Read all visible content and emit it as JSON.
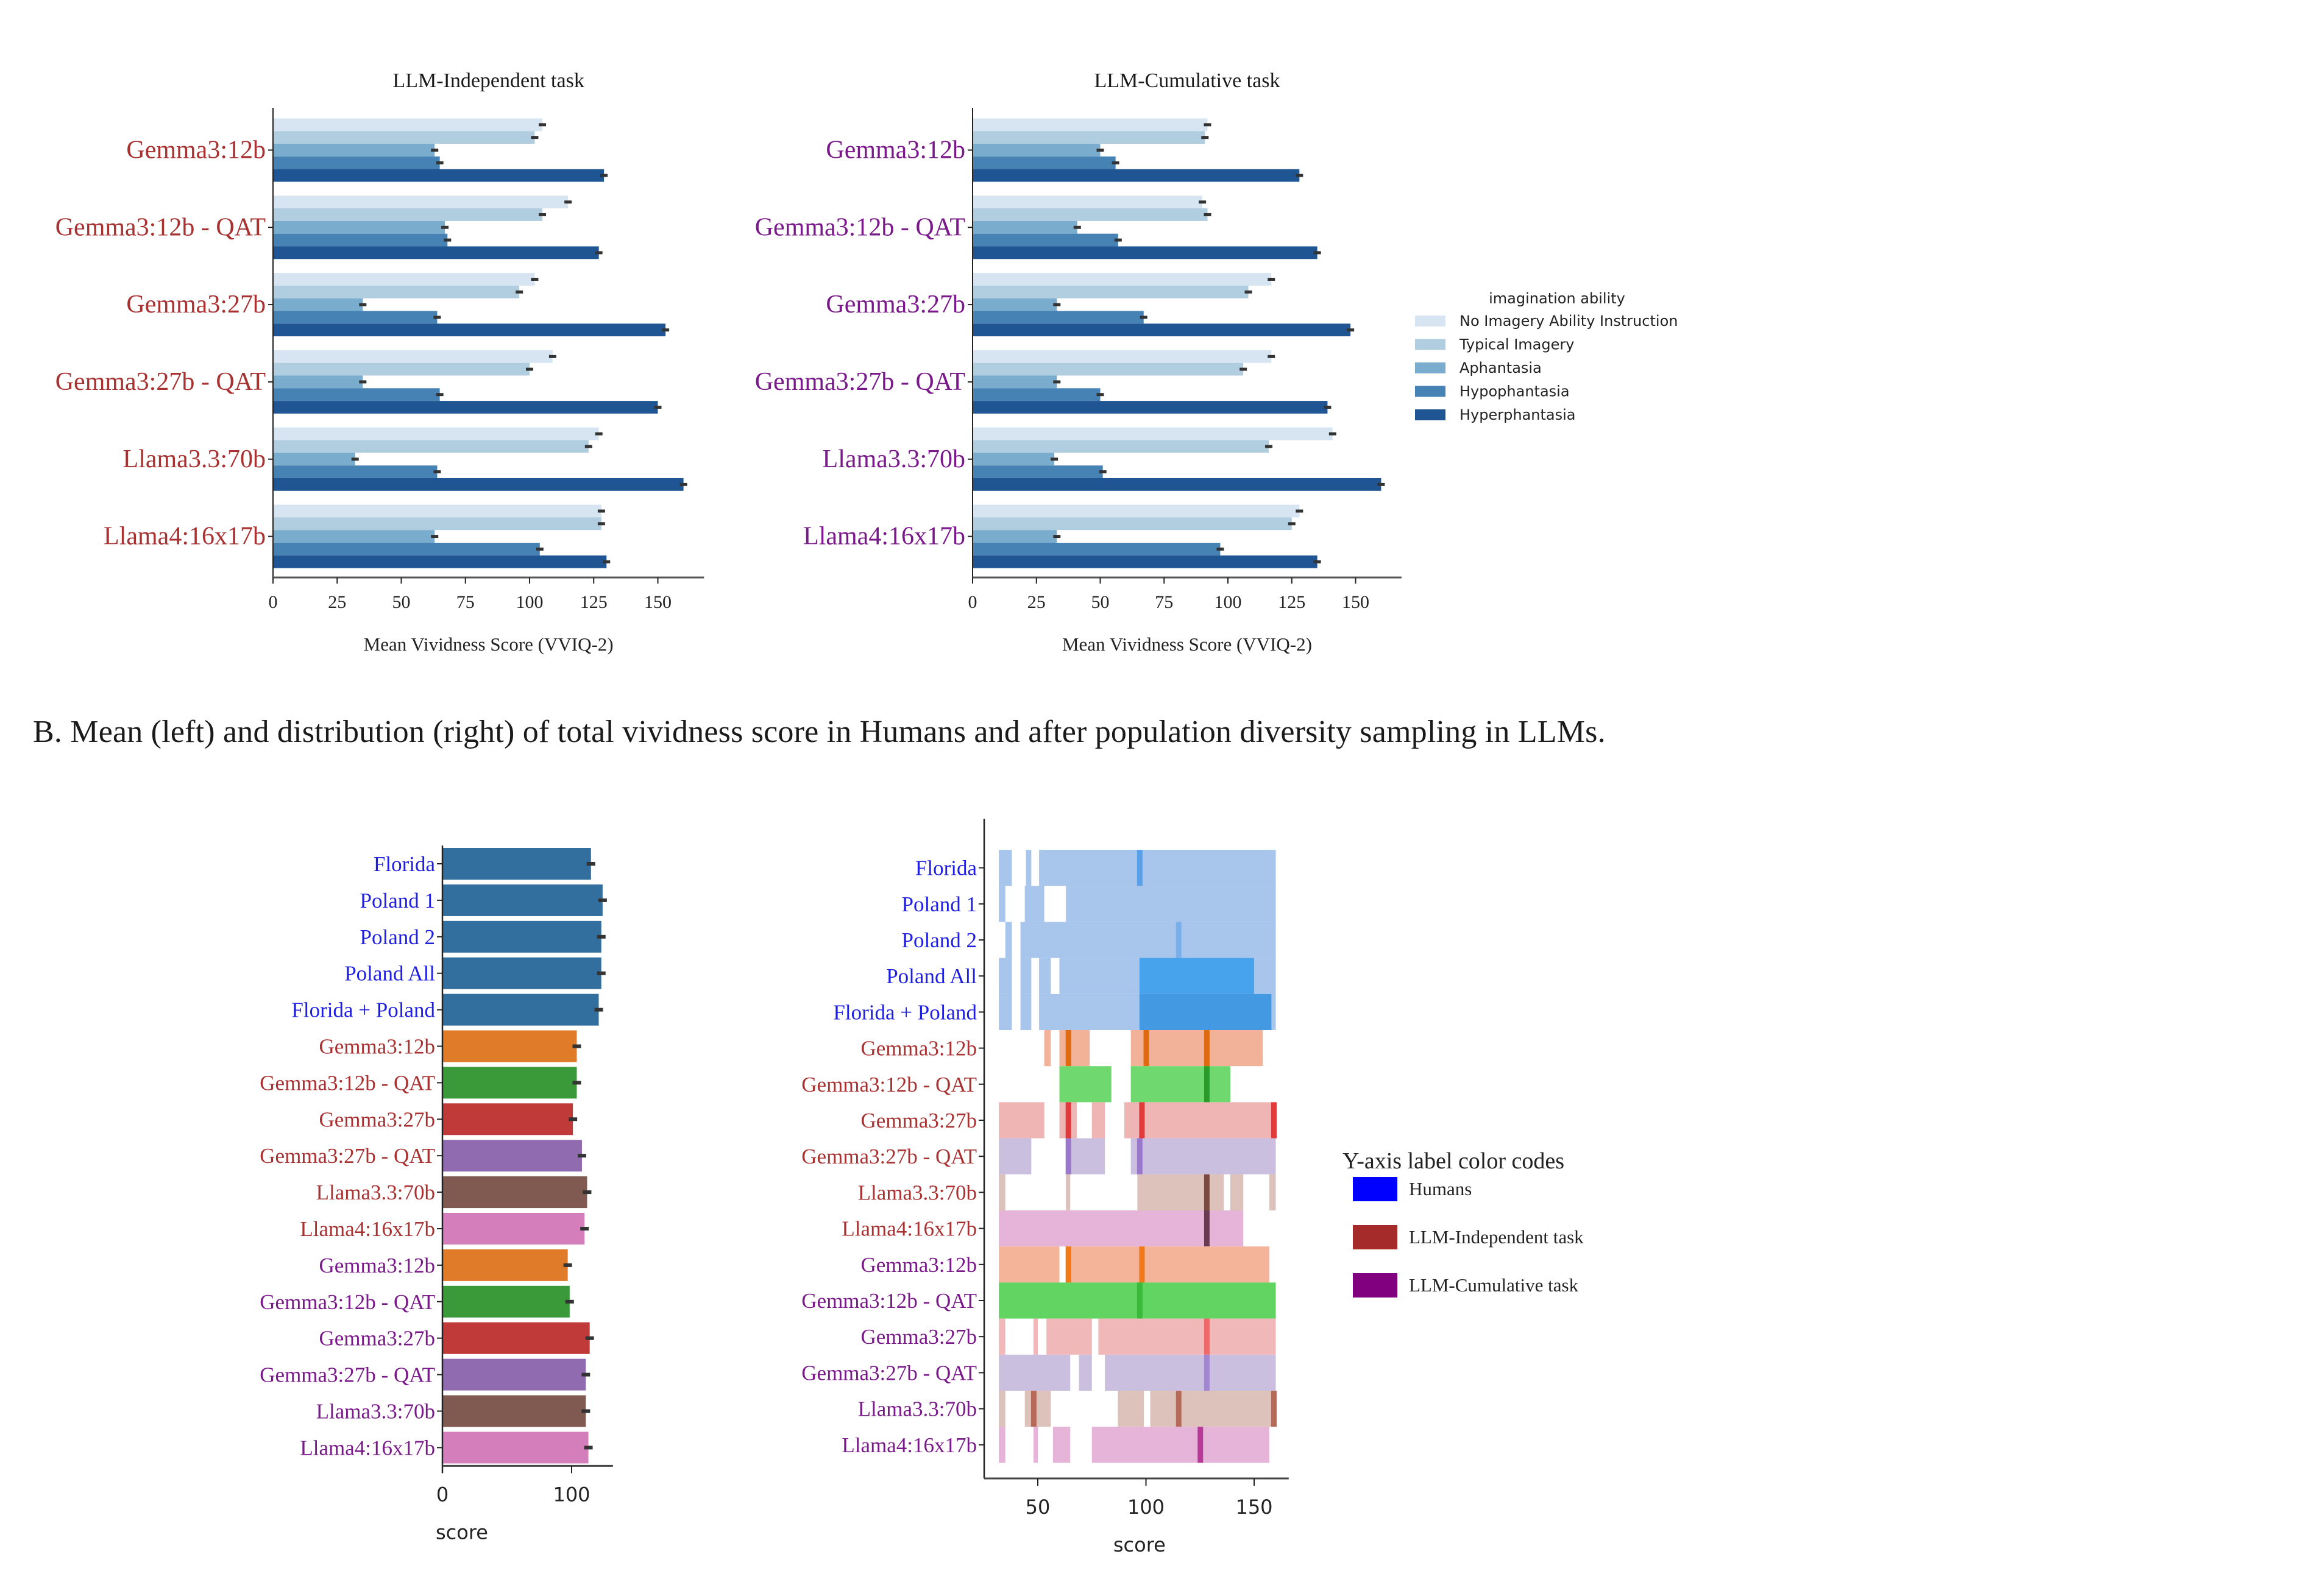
{
  "section_b_heading": "B. Mean (left) and distribution (right) of total vividness score in Humans and after population diversity sampling in LLMs.",
  "colors": {
    "humans_label": "#1f1fe0",
    "independent_label": "#a83232",
    "cumulative_label": "#7a1a8a",
    "imagery": [
      "#d6e5f1",
      "#b1cde0",
      "#7aaccd",
      "#4682b4",
      "#1f5592"
    ],
    "models": [
      "#e07b2a",
      "#3a9a3a",
      "#c03a3a",
      "#916bb0",
      "#805a50",
      "#d47fbb"
    ],
    "humans_bar": "#326f9e",
    "errorbar": "#333333"
  },
  "chart_data": [
    {
      "id": "A-independent",
      "type": "bar",
      "orientation": "horizontal",
      "title": "LLM-Independent task",
      "xlabel": "Mean Vividness Score (VVIQ-2)",
      "ylabel": "",
      "xlim": [
        0,
        168
      ],
      "xticks": [
        0,
        25,
        50,
        75,
        100,
        125,
        150
      ],
      "grid": false,
      "legend": "right",
      "categories": [
        "Gemma3:12b",
        "Gemma3:12b - QAT",
        "Gemma3:27b",
        "Gemma3:27b - QAT",
        "Llama3.3:70b",
        "Llama4:16x17b"
      ],
      "label_group": "independent",
      "series": [
        {
          "name": "No Imagery Ability Instruction",
          "values": [
            105,
            115,
            102,
            109,
            127,
            128
          ]
        },
        {
          "name": "Typical Imagery",
          "values": [
            102,
            105,
            96,
            100,
            123,
            128
          ]
        },
        {
          "name": "Aphantasia",
          "values": [
            63,
            67,
            35,
            35,
            32,
            63
          ]
        },
        {
          "name": "Hypophantasia",
          "values": [
            65,
            68,
            64,
            65,
            64,
            104
          ]
        },
        {
          "name": "Hyperphantasia",
          "values": [
            129,
            127,
            153,
            150,
            160,
            130
          ]
        }
      ]
    },
    {
      "id": "A-cumulative",
      "type": "bar",
      "orientation": "horizontal",
      "title": "LLM-Cumulative task",
      "xlabel": "Mean Vividness Score (VVIQ-2)",
      "ylabel": "",
      "xlim": [
        0,
        168
      ],
      "xticks": [
        0,
        25,
        50,
        75,
        100,
        125,
        150
      ],
      "grid": false,
      "legend": "right",
      "categories": [
        "Gemma3:12b",
        "Gemma3:12b - QAT",
        "Gemma3:27b",
        "Gemma3:27b - QAT",
        "Llama3.3:70b",
        "Llama4:16x17b"
      ],
      "label_group": "cumulative",
      "series": [
        {
          "name": "No Imagery Ability Instruction",
          "values": [
            92,
            90,
            117,
            117,
            141,
            128
          ]
        },
        {
          "name": "Typical Imagery",
          "values": [
            91,
            92,
            108,
            106,
            116,
            125
          ]
        },
        {
          "name": "Aphantasia",
          "values": [
            50,
            41,
            33,
            33,
            32,
            33
          ]
        },
        {
          "name": "Hypophantasia",
          "values": [
            56,
            57,
            67,
            50,
            51,
            97
          ]
        },
        {
          "name": "Hyperphantasia",
          "values": [
            128,
            135,
            148,
            139,
            160,
            135
          ]
        }
      ]
    },
    {
      "id": "B-mean",
      "type": "bar",
      "orientation": "horizontal",
      "title": "",
      "xlabel": "score",
      "ylabel": "",
      "xlim": [
        0,
        132
      ],
      "xticks": [
        0,
        100
      ],
      "grid": false,
      "categories": [
        "Florida",
        "Poland 1",
        "Poland 2",
        "Poland All",
        "Florida + Poland",
        "Gemma3:12b",
        "Gemma3:12b - QAT",
        "Gemma3:27b",
        "Gemma3:27b - QAT",
        "Llama3.3:70b",
        "Llama4:16x17b",
        "Gemma3:12b",
        "Gemma3:12b - QAT",
        "Gemma3:27b",
        "Gemma3:27b - QAT",
        "Llama3.3:70b",
        "Llama4:16x17b"
      ],
      "label_groups": [
        "humans",
        "humans",
        "humans",
        "humans",
        "humans",
        "independent",
        "independent",
        "independent",
        "independent",
        "independent",
        "independent",
        "cumulative",
        "cumulative",
        "cumulative",
        "cumulative",
        "cumulative",
        "cumulative"
      ],
      "values": [
        115,
        124,
        123,
        123,
        121,
        104,
        104,
        101,
        108,
        112,
        110,
        97,
        98.5,
        114,
        111,
        111,
        113
      ]
    },
    {
      "id": "B-distribution",
      "type": "heatmap",
      "title": "",
      "xlabel": "score",
      "ylabel": "",
      "xlim": [
        24,
        166
      ],
      "xticks": [
        50,
        100,
        150
      ],
      "grid": false,
      "categories": [
        "Florida",
        "Poland 1",
        "Poland 2",
        "Poland All",
        "Florida + Poland",
        "Gemma3:12b",
        "Gemma3:12b - QAT",
        "Gemma3:27b",
        "Gemma3:27b - QAT",
        "Llama3.3:70b",
        "Llama4:16x17b",
        "Gemma3:12b",
        "Gemma3:12b - QAT",
        "Gemma3:27b",
        "Gemma3:27b - QAT",
        "Llama3.3:70b",
        "Llama4:16x17b"
      ],
      "label_groups": [
        "humans",
        "humans",
        "humans",
        "humans",
        "humans",
        "independent",
        "independent",
        "independent",
        "independent",
        "independent",
        "independent",
        "cumulative",
        "cumulative",
        "cumulative",
        "cumulative",
        "cumulative",
        "cumulative"
      ],
      "rows": [
        {
          "color": "#a8c6ec",
          "dense": "#5aa0e8",
          "ranges": [
            [
              32,
              38
            ],
            [
              44.5,
              47
            ],
            [
              50.6,
              160
            ]
          ],
          "peaks": [
            97
          ]
        },
        {
          "color": "#a8c6ec",
          "dense": "#7ab0ea",
          "ranges": [
            [
              32,
              35
            ],
            [
              44,
              53
            ],
            [
              63,
              160
            ]
          ],
          "peaks": []
        },
        {
          "color": "#a8c6ec",
          "dense": "#7ab0ea",
          "ranges": [
            [
              35,
              38
            ],
            [
              42,
              160
            ]
          ],
          "peaks": [
            115
          ]
        },
        {
          "color": "#a8c6ec",
          "dense": "#2f9aee",
          "ranges": [
            [
              32,
              38
            ],
            [
              42,
              47
            ],
            [
              50.6,
              56
            ],
            [
              60,
              160
            ]
          ],
          "peaks": [],
          "dense_range": [
            97,
            150
          ]
        },
        {
          "color": "#a8c6ec",
          "dense": "#2a8fe0",
          "ranges": [
            [
              32,
              38
            ],
            [
              42,
              47
            ],
            [
              50.6,
              160
            ]
          ],
          "peaks": [],
          "dense_range": [
            97,
            158
          ]
        },
        {
          "color": "#f2b29a",
          "dense": "#e06a10",
          "ranges": [
            [
              53,
              56
            ],
            [
              60,
              74
            ],
            [
              93,
              154
            ]
          ],
          "peaks": [
            64,
            100,
            128
          ]
        },
        {
          "color": "#6fd86f",
          "dense": "#2a9a2a",
          "ranges": [
            [
              60,
              84
            ],
            [
              93,
              139
            ]
          ],
          "peaks": [
            128
          ]
        },
        {
          "color": "#efb4b4",
          "dense": "#e03a3a",
          "ranges": [
            [
              32,
              53
            ],
            [
              60,
              68
            ],
            [
              75,
              81
            ],
            [
              90,
              160
            ]
          ],
          "peaks": [
            64,
            98,
            159
          ]
        },
        {
          "color": "#cbbfe0",
          "dense": "#9a78cc",
          "ranges": [
            [
              32,
              47
            ],
            [
              63,
              81
            ],
            [
              93,
              160
            ]
          ],
          "peaks": [
            64,
            97
          ]
        },
        {
          "color": "#dcc2ba",
          "dense": "#7a4a40",
          "ranges": [
            [
              32,
              35
            ],
            [
              63,
              65
            ],
            [
              96,
              136
            ],
            [
              139,
              145
            ],
            [
              157,
              160
            ]
          ],
          "peaks": [
            128
          ]
        },
        {
          "color": "#e6b4d8",
          "dense": "#6a3a50",
          "ranges": [
            [
              32,
              145
            ]
          ],
          "peaks": [
            128
          ]
        },
        {
          "color": "#f4b49a",
          "dense": "#f07a1a",
          "ranges": [
            [
              32,
              60
            ],
            [
              63,
              157
            ]
          ],
          "peaks": [
            64,
            98
          ]
        },
        {
          "color": "#62d462",
          "dense": "#3aba3a",
          "ranges": [
            [
              32,
              160
            ]
          ],
          "peaks": [
            97
          ]
        },
        {
          "color": "#f0b8b8",
          "dense": "#ee6a6a",
          "ranges": [
            [
              32,
              35
            ],
            [
              48,
              50
            ],
            [
              54,
              75
            ],
            [
              78,
              160
            ]
          ],
          "peaks": [
            128
          ]
        },
        {
          "color": "#cbbfe0",
          "dense": "#a286d0",
          "ranges": [
            [
              32,
              65
            ],
            [
              69,
              75
            ],
            [
              81,
              160
            ]
          ],
          "peaks": [
            128
          ]
        },
        {
          "color": "#dcc2ba",
          "dense": "#b56a5a",
          "ranges": [
            [
              32,
              35
            ],
            [
              44,
              56
            ],
            [
              87,
              99
            ],
            [
              102,
              160
            ]
          ],
          "peaks": [
            48,
            115,
            159
          ]
        },
        {
          "color": "#e6b4d8",
          "dense": "#b83a98",
          "ranges": [
            [
              32,
              35
            ],
            [
              48,
              50
            ],
            [
              57,
              65
            ],
            [
              75,
              157
            ]
          ],
          "peaks": [
            125
          ]
        }
      ]
    }
  ],
  "legend_a": {
    "title": "imagination  ability",
    "items": [
      "No Imagery Ability Instruction",
      "Typical Imagery",
      "Aphantasia",
      "Hypophantasia",
      "Hyperphantasia"
    ]
  },
  "legend_b": {
    "title": "Y-axis label color codes",
    "items": [
      {
        "label": "Humans",
        "color": "#0000ff"
      },
      {
        "label": "LLM-Independent task",
        "color": "#a52a2a"
      },
      {
        "label": "LLM-Cumulative task",
        "color": "#800080"
      }
    ]
  }
}
